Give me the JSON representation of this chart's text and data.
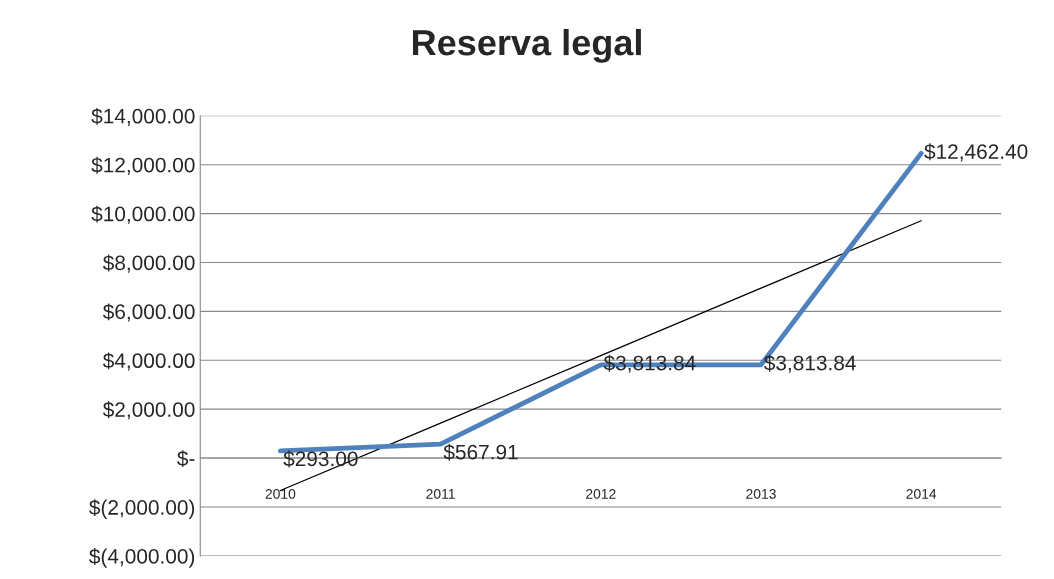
{
  "chart_data": {
    "type": "line",
    "title": "Reserva legal",
    "categories": [
      "2010",
      "2011",
      "2012",
      "2013",
      "2014"
    ],
    "series": [
      {
        "color": "#4f81bd",
        "values": [
          293.0,
          567.91,
          3813.84,
          3813.84,
          12462.4
        ],
        "value_labels": [
          "$293.00",
          "$567.91",
          "$3,813.84",
          "$3,813.84",
          "$12,462.40"
        ]
      },
      {
        "type": "line",
        "color": "#000000",
        "values": [
          -1327,
          1431,
          4190,
          6949,
          9707
        ]
      }
    ],
    "ylim": [
      -4000,
      14000
    ],
    "yticks": [
      {
        "value": -4000,
        "label": "$(4,000.00)"
      },
      {
        "value": -2000,
        "label": "$(2,000.00)"
      },
      {
        "value": 0,
        "label": "$-"
      },
      {
        "value": 2000,
        "label": "$2,000.00"
      },
      {
        "value": 4000,
        "label": "$4,000.00"
      },
      {
        "value": 6000,
        "label": "$6,000.00"
      },
      {
        "value": 8000,
        "label": "$8,000.00"
      },
      {
        "value": 10000,
        "label": "$10,000.00"
      },
      {
        "value": 12000,
        "label": "$12,000.00"
      },
      {
        "value": 14000,
        "label": "$14,000.00"
      }
    ],
    "grid": "y",
    "legend": false,
    "marker": "none"
  }
}
